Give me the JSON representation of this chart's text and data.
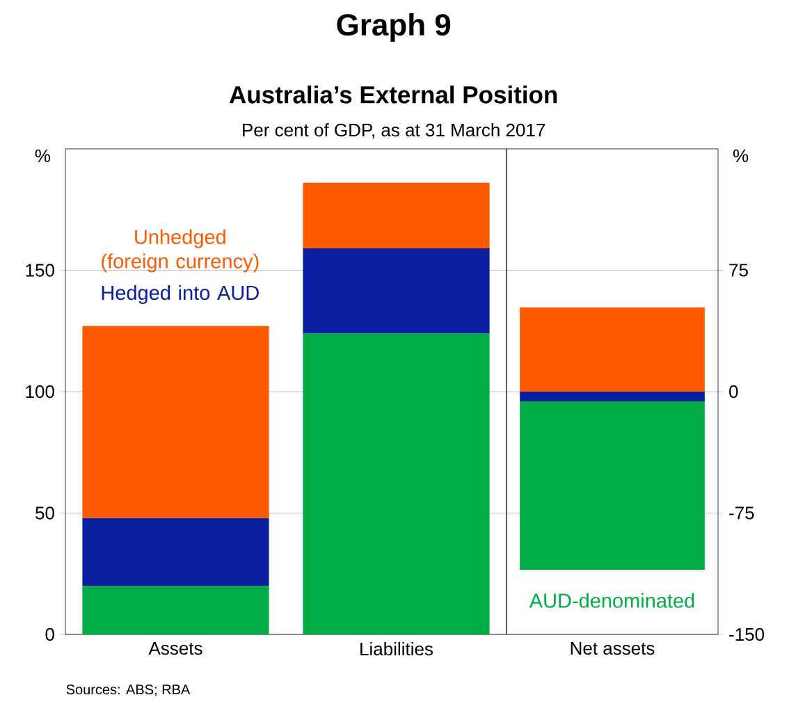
{
  "chart_data": [
    {
      "type": "bar",
      "title": "Australia’s External Position",
      "subtitle": "Per cent of GDP, as at 31 March 2017",
      "ylabel": "%",
      "annotations": [
        "Graph 9",
        "Sources: ABS; RBA"
      ],
      "categories": [
        "Assets",
        "Liabilities"
      ],
      "stacked": true,
      "grid": "y",
      "ylim": [
        0,
        200
      ],
      "yticks": [
        0,
        50,
        100,
        150
      ],
      "series": [
        {
          "color": "#00ad45",
          "values": [
            20,
            124
          ]
        },
        {
          "name": "Hedged into AUD",
          "color": "#0a1f9f",
          "values": [
            28,
            35
          ]
        },
        {
          "name": "Unhedged (foreign currency)",
          "color": "#ff5a00",
          "values": [
            79,
            27
          ]
        }
      ]
    },
    {
      "type": "bar",
      "ylabel": "%",
      "categories": [
        "Net assets"
      ],
      "stacked": true,
      "grid": "y",
      "ylim": [
        -150,
        150
      ],
      "yticks": [
        -150,
        -75,
        0,
        75
      ],
      "series": [
        {
          "color": "#0a1f9f",
          "values": [
            -6
          ]
        },
        {
          "name": "AUD-denominated",
          "color": "#00ad45",
          "values": [
            -104
          ]
        },
        {
          "color": "#ff5a00",
          "values": [
            52
          ]
        }
      ]
    }
  ]
}
